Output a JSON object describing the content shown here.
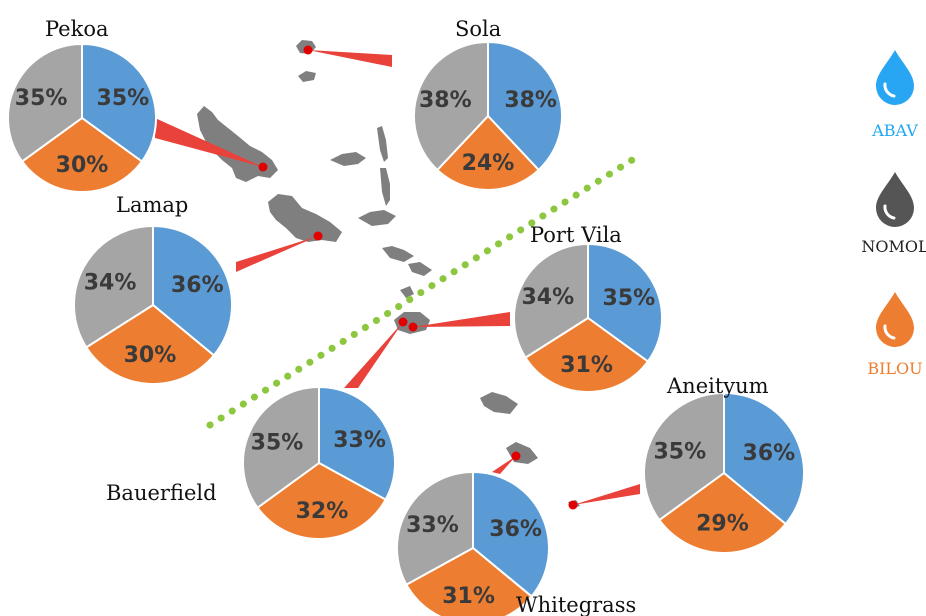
{
  "colors": {
    "ABAV": "#5b9bd5",
    "BILOU": "#ed7d31",
    "NOMOL": "#a5a5a5",
    "island": "#7f7f7f",
    "connector": "#e8423a",
    "marker": "#e00000",
    "boundary": "#8dc63f"
  },
  "legend": [
    {
      "label": "ABAV",
      "icon": "blue-drop-icon",
      "color": "#29a6f3",
      "label_color": "#1ea7f0"
    },
    {
      "label": "NOMOL",
      "icon": "grey-drop-icon",
      "color": "#555555",
      "label_color": "#222222"
    },
    {
      "label": "BILOU",
      "icon": "orange-drop-icon",
      "color": "#ed7d31",
      "label_color": "#ed7d31"
    }
  ],
  "chart_data": {
    "type": "pie",
    "series_order": [
      "ABAV",
      "BILOU",
      "NOMOL"
    ],
    "pies": [
      {
        "name": "Pekoa",
        "values": [
          35,
          30,
          35
        ]
      },
      {
        "name": "Sola",
        "values": [
          38,
          24,
          38
        ]
      },
      {
        "name": "Lamap",
        "values": [
          36,
          30,
          34
        ]
      },
      {
        "name": "Port Vila",
        "values": [
          35,
          31,
          34
        ]
      },
      {
        "name": "Bauerfield",
        "values": [
          33,
          32,
          35
        ]
      },
      {
        "name": "Aneityum",
        "values": [
          36,
          29,
          35
        ]
      },
      {
        "name": "Whitegrass",
        "values": [
          36,
          31,
          33
        ]
      }
    ]
  }
}
